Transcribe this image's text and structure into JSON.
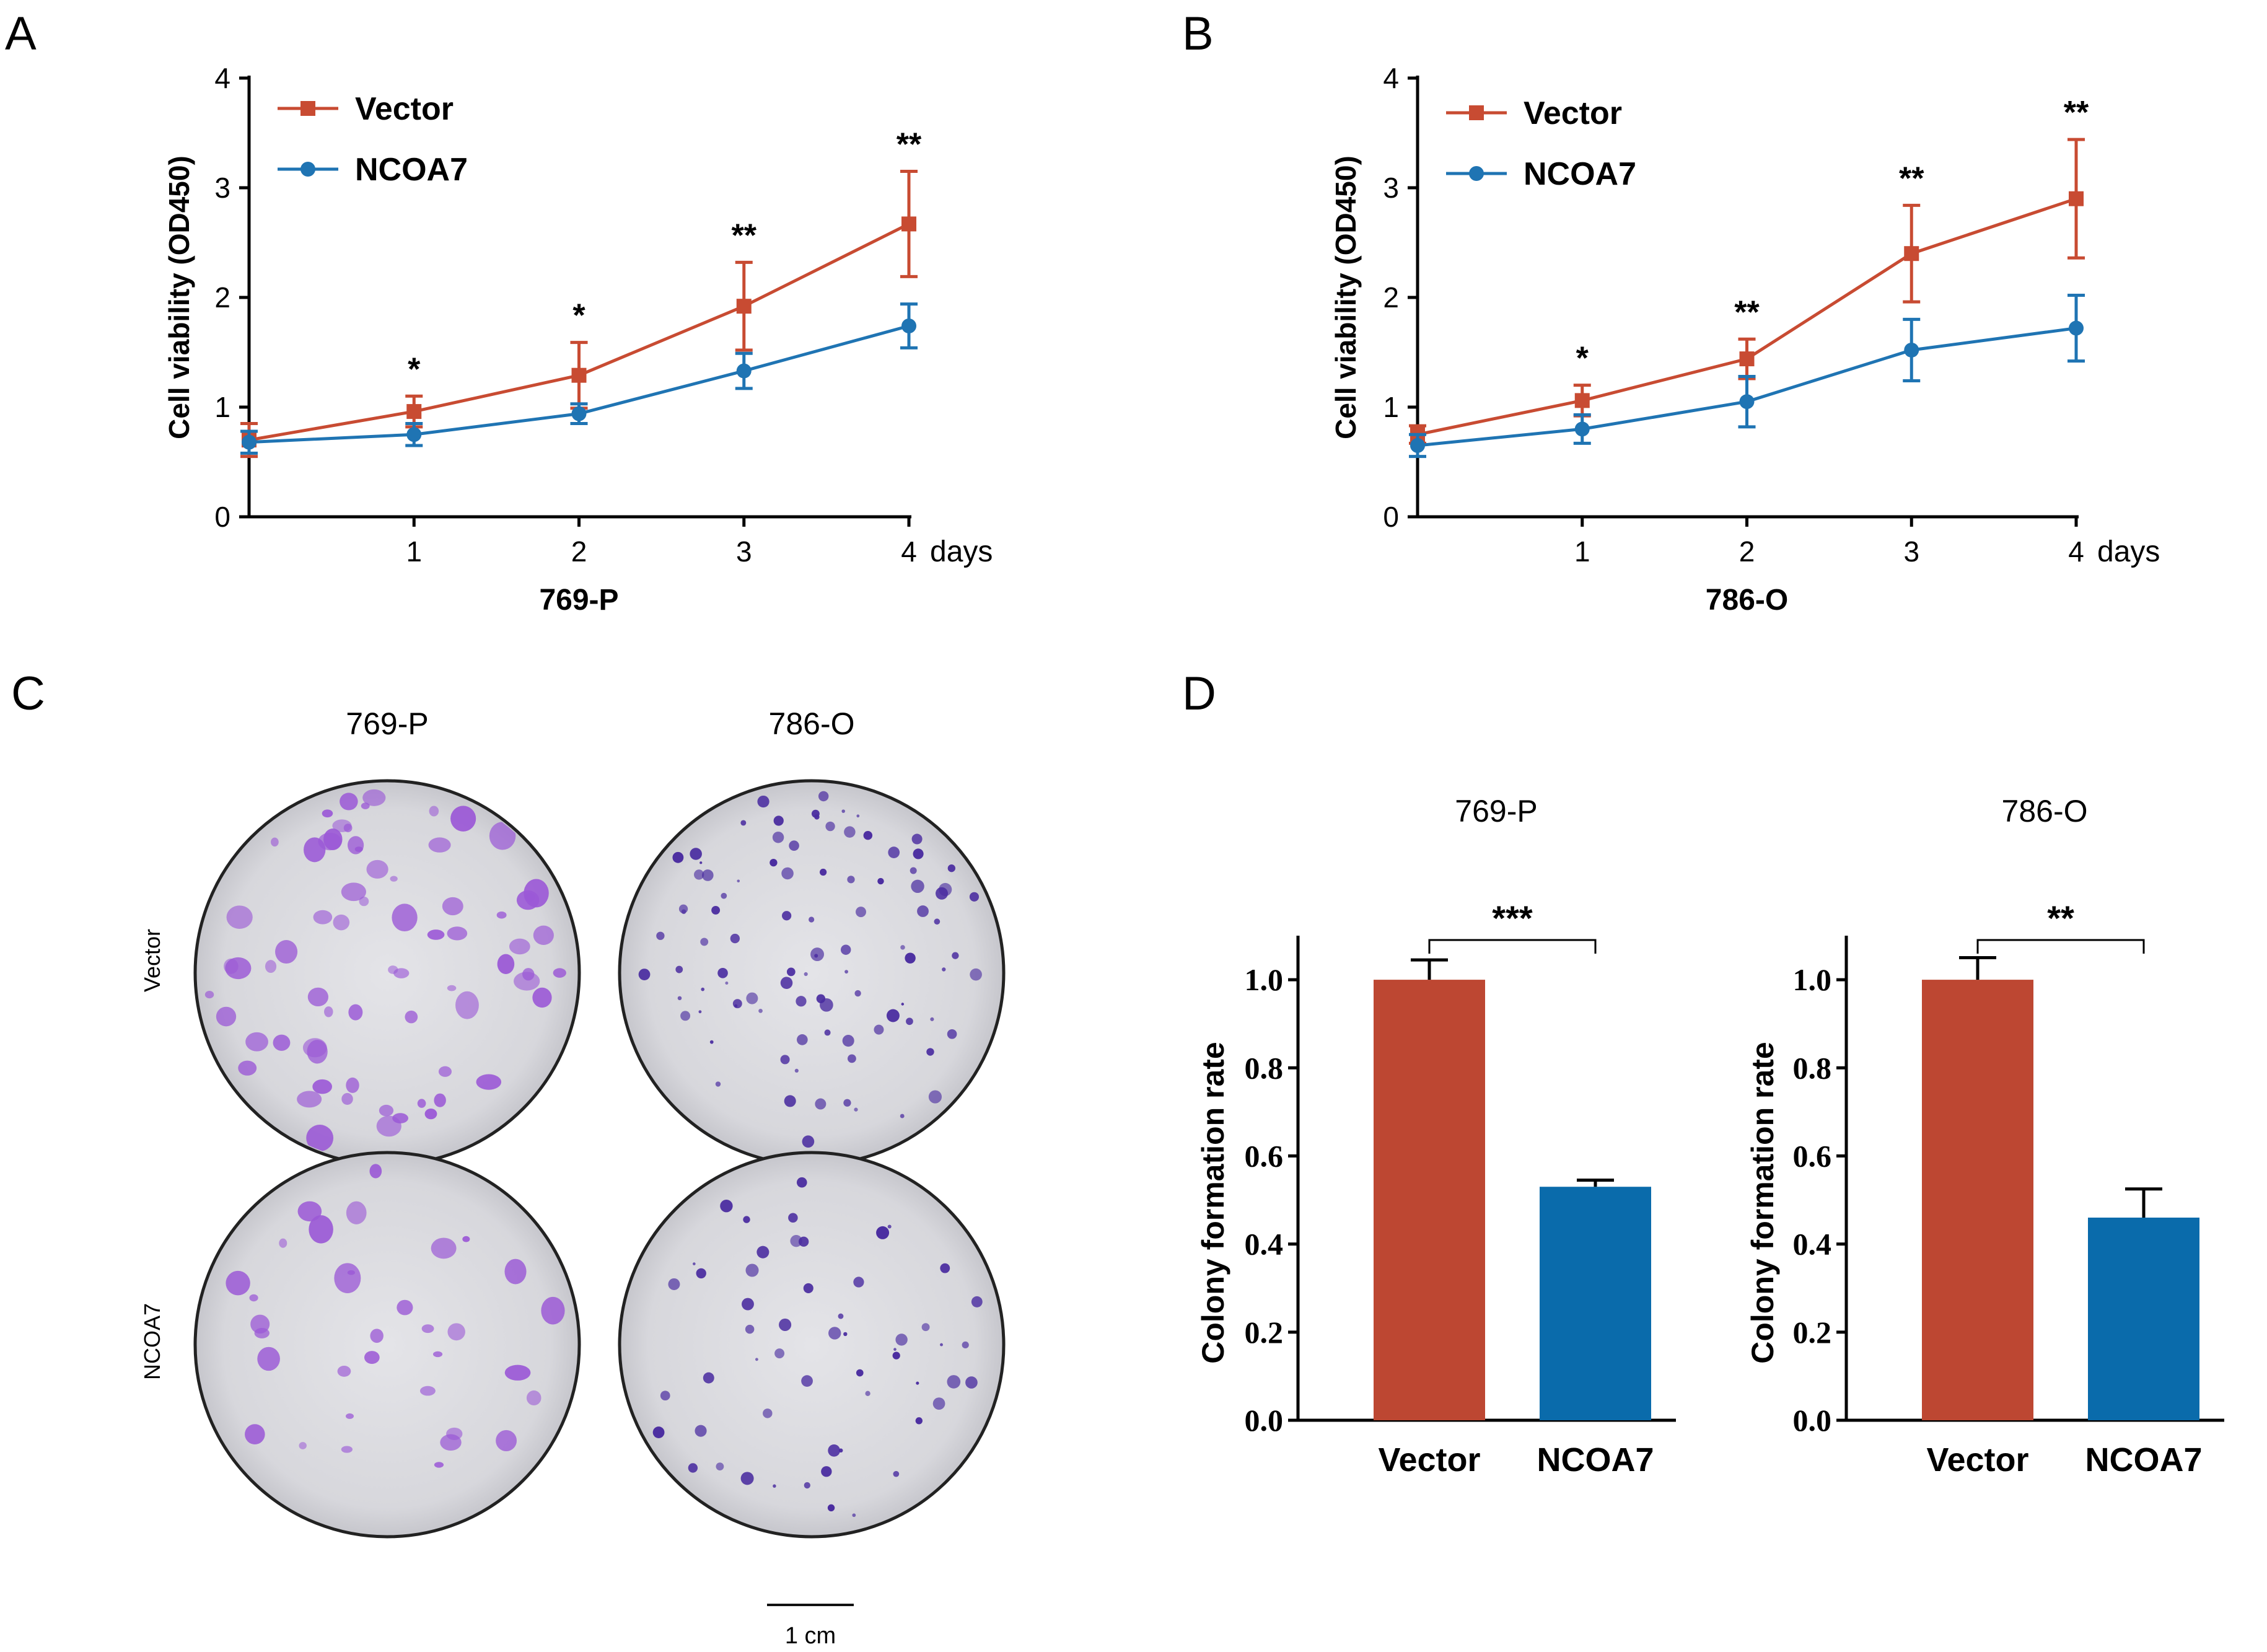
{
  "colors": {
    "vector": "#c84b32",
    "ncoa7": "#1f74b3",
    "bar_vector": "#bd4732",
    "bar_ncoa7": "#0a6bab",
    "stain_light": "#9b59d6",
    "stain_dark": "#4a2ca0",
    "dish": "#d7d7dc"
  },
  "panels": {
    "A": {
      "letter": "A"
    },
    "B": {
      "letter": "B"
    },
    "C": {
      "letter": "C",
      "col_labels": [
        "769-P",
        "786-O"
      ],
      "row_labels": [
        "Vector",
        "NCOA7"
      ],
      "scale_label": "1 cm"
    },
    "D": {
      "letter": "D"
    }
  },
  "chart_data": [
    {
      "panel": "A",
      "type": "line",
      "ylabel": "Cell viability (OD450)",
      "xlabel": "769-P",
      "x_unit": "days",
      "x_ticks": [
        "1",
        "2",
        "3",
        "4"
      ],
      "y_ticks": [
        "0",
        "1",
        "2",
        "3",
        "4"
      ],
      "ylim": [
        0,
        4
      ],
      "xlim": [
        0,
        4
      ],
      "legend": "top-left",
      "x": [
        0,
        1,
        2,
        3,
        4
      ],
      "series": [
        {
          "name": "Vector",
          "values": [
            0.7,
            0.96,
            1.29,
            1.92,
            2.67
          ],
          "errors": [
            0.15,
            0.14,
            0.3,
            0.4,
            0.48
          ],
          "marker": "square"
        },
        {
          "name": "NCOA7",
          "values": [
            0.68,
            0.75,
            0.94,
            1.33,
            1.74
          ],
          "errors": [
            0.1,
            0.1,
            0.09,
            0.16,
            0.2
          ],
          "marker": "circle"
        }
      ],
      "significance": [
        "",
        "*",
        "*",
        "**",
        "**"
      ]
    },
    {
      "panel": "B",
      "type": "line",
      "ylabel": "Cell viability (OD450)",
      "xlabel": "786-O",
      "x_unit": "days",
      "x_ticks": [
        "1",
        "2",
        "3",
        "4"
      ],
      "y_ticks": [
        "0",
        "1",
        "2",
        "3",
        "4"
      ],
      "ylim": [
        0,
        4
      ],
      "xlim": [
        0,
        4
      ],
      "legend": "top-left",
      "x": [
        0,
        1,
        2,
        3,
        4
      ],
      "series": [
        {
          "name": "Vector",
          "values": [
            0.75,
            1.06,
            1.44,
            2.4,
            2.9
          ],
          "errors": [
            0.08,
            0.14,
            0.18,
            0.44,
            0.54
          ],
          "marker": "square"
        },
        {
          "name": "NCOA7",
          "values": [
            0.65,
            0.8,
            1.05,
            1.52,
            1.72
          ],
          "errors": [
            0.1,
            0.13,
            0.23,
            0.28,
            0.3
          ],
          "marker": "circle"
        }
      ],
      "significance": [
        "",
        "*",
        "**",
        "**",
        "**"
      ]
    },
    {
      "panel": "D",
      "type": "bar",
      "title": "769-P",
      "ylabel": "Colony formation rate",
      "categories": [
        "Vector",
        "NCOA7"
      ],
      "values": [
        1.0,
        0.53
      ],
      "errors": [
        0.045,
        0.015
      ],
      "ylim": [
        0,
        1.1
      ],
      "y_ticks": [
        "0.0",
        "0.2",
        "0.4",
        "0.6",
        "0.8",
        "1.0"
      ],
      "significance": "***"
    },
    {
      "panel": "D",
      "type": "bar",
      "title": "786-O",
      "ylabel": "Colony formation rate",
      "categories": [
        "Vector",
        "NCOA7"
      ],
      "values": [
        1.0,
        0.46
      ],
      "errors": [
        0.05,
        0.065
      ],
      "ylim": [
        0,
        1.1
      ],
      "y_ticks": [
        "0.0",
        "0.2",
        "0.4",
        "0.6",
        "0.8",
        "1.0"
      ],
      "significance": "**"
    }
  ]
}
